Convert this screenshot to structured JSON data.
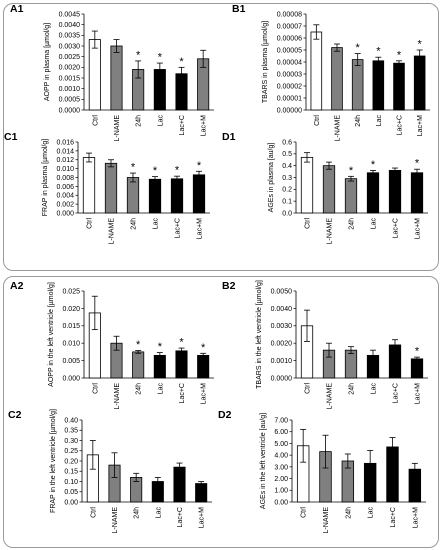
{
  "chart_data": [
    {
      "id": "A1",
      "type": "bar",
      "panel_label": "A1",
      "ylabel": "AOPP in plasma [µmol/g]",
      "categories": [
        "Ctrl",
        "L-NAME",
        "24h",
        "Lac",
        "Lac+C",
        "Lac+M"
      ],
      "values": [
        0.0033,
        0.003,
        0.0019,
        0.0019,
        0.0017,
        0.0024
      ],
      "errors": [
        0.0004,
        0.0003,
        0.0004,
        0.0003,
        0.0003,
        0.0004
      ],
      "significant": [
        false,
        false,
        true,
        true,
        true,
        false
      ],
      "bar_colors": [
        "#ffffff",
        "#808080",
        "#808080",
        "#000000",
        "#000000",
        "#808080"
      ],
      "ylim": [
        0,
        0.0045
      ],
      "ticks": [
        "0.0000",
        "0.0005",
        "0.0010",
        "0.0015",
        "0.0020",
        "0.0025",
        "0.0030",
        "0.0035",
        "0.0040",
        "0.0045"
      ],
      "sig_marker": "*"
    },
    {
      "id": "B1",
      "type": "bar",
      "panel_label": "B1",
      "ylabel": "TBARS in plasma [µmol/g]",
      "categories": [
        "Ctrl",
        "L-NAME",
        "24h",
        "Lac",
        "Lac+C",
        "Lac+M"
      ],
      "values": [
        6.5e-05,
        5.2e-05,
        4.2e-05,
        4.1e-05,
        3.9e-05,
        4.5e-05
      ],
      "errors": [
        6e-06,
        3e-06,
        5e-06,
        3e-06,
        2e-06,
        5e-06
      ],
      "significant": [
        false,
        false,
        true,
        true,
        true,
        true
      ],
      "bar_colors": [
        "#ffffff",
        "#808080",
        "#808080",
        "#000000",
        "#000000",
        "#000000"
      ],
      "ylim": [
        0,
        8e-05
      ],
      "ticks": [
        "0.00000",
        "0.00001",
        "0.00002",
        "0.00003",
        "0.00004",
        "0.00005",
        "0.00006",
        "0.00007",
        "0.00008"
      ],
      "sig_marker": "*"
    },
    {
      "id": "C1",
      "type": "bar",
      "panel_label": "C1",
      "ylabel": "FRAP in plasma [µmol/g]",
      "categories": [
        "Ctrl",
        "L-NAME",
        "24h",
        "Lac",
        "Lac+C",
        "Lac+M"
      ],
      "values": [
        0.0125,
        0.0112,
        0.008,
        0.0076,
        0.0077,
        0.0086
      ],
      "errors": [
        0.001,
        0.0008,
        0.001,
        0.0006,
        0.0006,
        0.0008
      ],
      "significant": [
        false,
        false,
        true,
        true,
        true,
        true
      ],
      "bar_colors": [
        "#ffffff",
        "#808080",
        "#808080",
        "#000000",
        "#000000",
        "#000000"
      ],
      "ylim": [
        0,
        0.016
      ],
      "ticks": [
        "0.000",
        "0.002",
        "0.004",
        "0.006",
        "0.008",
        "0.010",
        "0.012",
        "0.014",
        "0.016"
      ],
      "sig_marker": "*"
    },
    {
      "id": "D1",
      "type": "bar",
      "panel_label": "D1",
      "ylabel": "AGEs in plasma [au/g]",
      "categories": [
        "Ctrl",
        "L-NAME",
        "24h",
        "Lac",
        "Lac+C",
        "Lac+M"
      ],
      "values": [
        0.47,
        0.4,
        0.29,
        0.34,
        0.36,
        0.34
      ],
      "errors": [
        0.04,
        0.03,
        0.02,
        0.02,
        0.02,
        0.03
      ],
      "significant": [
        false,
        false,
        true,
        true,
        false,
        true
      ],
      "bar_colors": [
        "#ffffff",
        "#808080",
        "#808080",
        "#000000",
        "#000000",
        "#000000"
      ],
      "ylim": [
        0,
        0.6
      ],
      "ticks": [
        "0.0",
        "0.1",
        "0.2",
        "0.3",
        "0.4",
        "0.5",
        "0.6"
      ],
      "sig_marker": "*"
    },
    {
      "id": "A2",
      "type": "bar",
      "panel_label": "A2",
      "ylabel": "AOPP in the left ventricle [µmol/g]",
      "categories": [
        "Ctrl",
        "L-NAME",
        "24h",
        "Lac",
        "Lac+C",
        "Lac+M"
      ],
      "values": [
        0.0187,
        0.01,
        0.0075,
        0.0065,
        0.0078,
        0.0065
      ],
      "errors": [
        0.0048,
        0.002,
        0.0004,
        0.0008,
        0.0008,
        0.0006
      ],
      "significant": [
        false,
        false,
        true,
        true,
        true,
        true
      ],
      "bar_colors": [
        "#ffffff",
        "#808080",
        "#808080",
        "#000000",
        "#000000",
        "#000000"
      ],
      "ylim": [
        0,
        0.025
      ],
      "ticks": [
        "0.000",
        "0.005",
        "0.010",
        "0.015",
        "0.020",
        "0.025"
      ],
      "sig_marker": "*"
    },
    {
      "id": "B2",
      "type": "bar",
      "panel_label": "B2",
      "ylabel": "TBARS in the left ventricle [µmol/g]",
      "categories": [
        "Ctrl",
        "L-NAME",
        "24h",
        "Lac",
        "Lac+C",
        "Lac+M"
      ],
      "values": [
        0.003,
        0.0016,
        0.0016,
        0.0013,
        0.0019,
        0.0011
      ],
      "errors": [
        0.0009,
        0.0004,
        0.0002,
        0.0003,
        0.0003,
        0.0001
      ],
      "significant": [
        false,
        false,
        false,
        false,
        false,
        true
      ],
      "bar_colors": [
        "#ffffff",
        "#808080",
        "#808080",
        "#000000",
        "#000000",
        "#000000"
      ],
      "ylim": [
        0,
        0.005
      ],
      "ticks": [
        "0.0000",
        "0.0010",
        "0.0020",
        "0.0030",
        "0.0040",
        "0.0050"
      ],
      "sig_marker": "*"
    },
    {
      "id": "C2",
      "type": "bar",
      "panel_label": "C2",
      "ylabel": "FRAP in the left ventricle [µmol/g]",
      "categories": [
        "Ctrl",
        "L-NAME",
        "24h",
        "Lac",
        "Lac+C",
        "Lac+M"
      ],
      "values": [
        0.23,
        0.18,
        0.12,
        0.1,
        0.17,
        0.09
      ],
      "errors": [
        0.07,
        0.06,
        0.02,
        0.02,
        0.02,
        0.01
      ],
      "significant": [
        false,
        false,
        false,
        false,
        false,
        false
      ],
      "bar_colors": [
        "#ffffff",
        "#808080",
        "#808080",
        "#000000",
        "#000000",
        "#000000"
      ],
      "ylim": [
        0,
        0.4
      ],
      "ticks": [
        "0.00",
        "0.05",
        "0.10",
        "0.15",
        "0.20",
        "0.25",
        "0.30",
        "0.35",
        "0.40"
      ],
      "sig_marker": "*"
    },
    {
      "id": "D2",
      "type": "bar",
      "panel_label": "D2",
      "ylabel": "AGEs in the left ventricle [au/g]",
      "categories": [
        "Ctrl",
        "L-NAME",
        "24h",
        "Lac",
        "Lac+C",
        "Lac+M"
      ],
      "values": [
        4.8,
        4.3,
        3.5,
        3.3,
        4.7,
        2.8
      ],
      "errors": [
        1.4,
        1.4,
        0.6,
        1.1,
        0.8,
        0.5
      ],
      "significant": [
        false,
        false,
        false,
        false,
        false,
        false
      ],
      "bar_colors": [
        "#ffffff",
        "#808080",
        "#808080",
        "#000000",
        "#000000",
        "#000000"
      ],
      "ylim": [
        0,
        7
      ],
      "ticks": [
        "0.00",
        "1.00",
        "2.00",
        "3.00",
        "4.00",
        "5.00",
        "6.00",
        "7.00"
      ],
      "sig_marker": "*"
    }
  ]
}
